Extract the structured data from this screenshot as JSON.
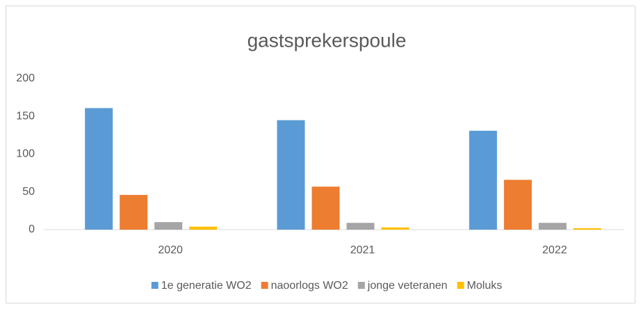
{
  "chart_data": {
    "type": "bar",
    "title": "gastsprekerspoule",
    "categories": [
      "2020",
      "2021",
      "2022"
    ],
    "series": [
      {
        "name": "1e generatie WO2",
        "color": "#5b9bd5",
        "values": [
          161,
          145,
          131
        ]
      },
      {
        "name": "naoorlogs WO2",
        "color": "#ed7d31",
        "values": [
          46,
          57,
          66
        ]
      },
      {
        "name": "jonge veteranen",
        "color": "#a5a5a5",
        "values": [
          10,
          9,
          9
        ]
      },
      {
        "name": "Moluks",
        "color": "#ffc000",
        "values": [
          4,
          3,
          2
        ]
      }
    ],
    "ylim": [
      0,
      200
    ],
    "yticks": [
      0,
      50,
      100,
      150,
      200
    ],
    "grid": false,
    "legend": "bottom"
  }
}
